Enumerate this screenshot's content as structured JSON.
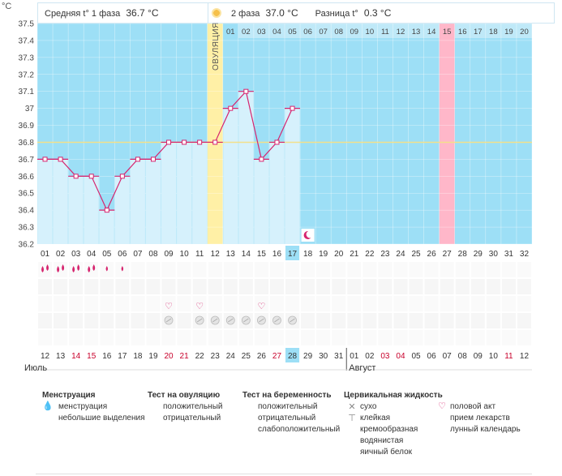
{
  "header": {
    "unit": "°C",
    "phase1_label": "Средняя t° 1 фаза",
    "phase1_value": "36.7 °C",
    "phase2_label": "2 фаза",
    "phase2_value": "37.0 °C",
    "diff_label": "Разница t°",
    "diff_value": "0.3 °C"
  },
  "ovulation_label": "ОВУЛЯЦИЯ",
  "top_day_numbers": [
    "01",
    "02",
    "03",
    "04",
    "05",
    "06",
    "07",
    "08",
    "09",
    "10",
    "11",
    "12",
    "13",
    "14",
    "15",
    "16",
    "17",
    "18",
    "19",
    "20"
  ],
  "bottom_day_numbers": [
    "01",
    "02",
    "03",
    "04",
    "05",
    "06",
    "07",
    "08",
    "09",
    "10",
    "11",
    "12",
    "13",
    "14",
    "15",
    "16",
    "17",
    "18",
    "19",
    "20",
    "21",
    "22",
    "23",
    "24",
    "25",
    "26",
    "27",
    "28",
    "29",
    "30",
    "31",
    "32"
  ],
  "current_day": "17",
  "highlight_day_top": "15",
  "calendar_dates": [
    "12",
    "13",
    "14",
    "15",
    "16",
    "17",
    "18",
    "19",
    "20",
    "21",
    "22",
    "23",
    "24",
    "25",
    "26",
    "27",
    "28",
    "29",
    "30",
    "31",
    "01",
    "02",
    "03",
    "04",
    "05",
    "06",
    "07",
    "08",
    "09",
    "10",
    "11",
    "12"
  ],
  "red_dates_idx": [
    2,
    3,
    8,
    9,
    15,
    22,
    23,
    30
  ],
  "current_date_idx": 16,
  "months": [
    "Июль",
    "Август"
  ],
  "chart_data": {
    "type": "line",
    "title": "",
    "xlabel": "",
    "ylabel": "°C",
    "ylim": [
      36.2,
      37.5
    ],
    "y_ticks": [
      "37.5",
      "37.4",
      "37.3",
      "37.2",
      "37.1",
      "37",
      "36.9",
      "36.8",
      "36.7",
      "36.6",
      "36.5",
      "36.4",
      "36.3",
      "36.2"
    ],
    "x": [
      1,
      2,
      3,
      4,
      5,
      6,
      7,
      8,
      9,
      10,
      11,
      12,
      13,
      14,
      15,
      16,
      17
    ],
    "series": [
      {
        "values": [
          36.7,
          36.7,
          36.6,
          36.6,
          36.4,
          36.6,
          36.7,
          36.7,
          36.8,
          36.8,
          36.8,
          36.8,
          37.0,
          37.1,
          36.7,
          36.8,
          37.0
        ]
      }
    ],
    "coverline": 36.8,
    "ovulation_day": 12
  },
  "symbols": {
    "menstruation_big": [
      1,
      2,
      3,
      4
    ],
    "menstruation_small": [
      5,
      6
    ],
    "intercourse": [
      9,
      11,
      15
    ],
    "pill": [
      9,
      11,
      12,
      13,
      14,
      15,
      16,
      17
    ]
  },
  "legend": {
    "menstruation": {
      "title": "Менструация",
      "items": [
        "менструация",
        "небольшие выделения"
      ]
    },
    "ovulation_test": {
      "title": "Тест на овуляцию",
      "items": [
        "положительный",
        "отрицательный"
      ]
    },
    "pregnancy_test": {
      "title": "Тест на беременность",
      "items": [
        "положительный",
        "отрицательный",
        "слабоположительный"
      ]
    },
    "cervical": {
      "title": "Цервикальная жидкость",
      "items": [
        "сухо",
        "клейкая",
        "кремообразная",
        "водянистая",
        "яичный белок"
      ]
    },
    "other": {
      "items": [
        "половой акт",
        "прием лекарств",
        "лунный календарь"
      ]
    }
  },
  "colors": {
    "plot_bg": "#9ddff6",
    "bar_fill": "#d6f1fc",
    "line": "#d6246e",
    "coverline": "#f3e08a",
    "ovulation": "#fff0a6",
    "highlight": "#ffb7c9",
    "current_day": "#9ddff6",
    "red_date": "#c8002b"
  }
}
